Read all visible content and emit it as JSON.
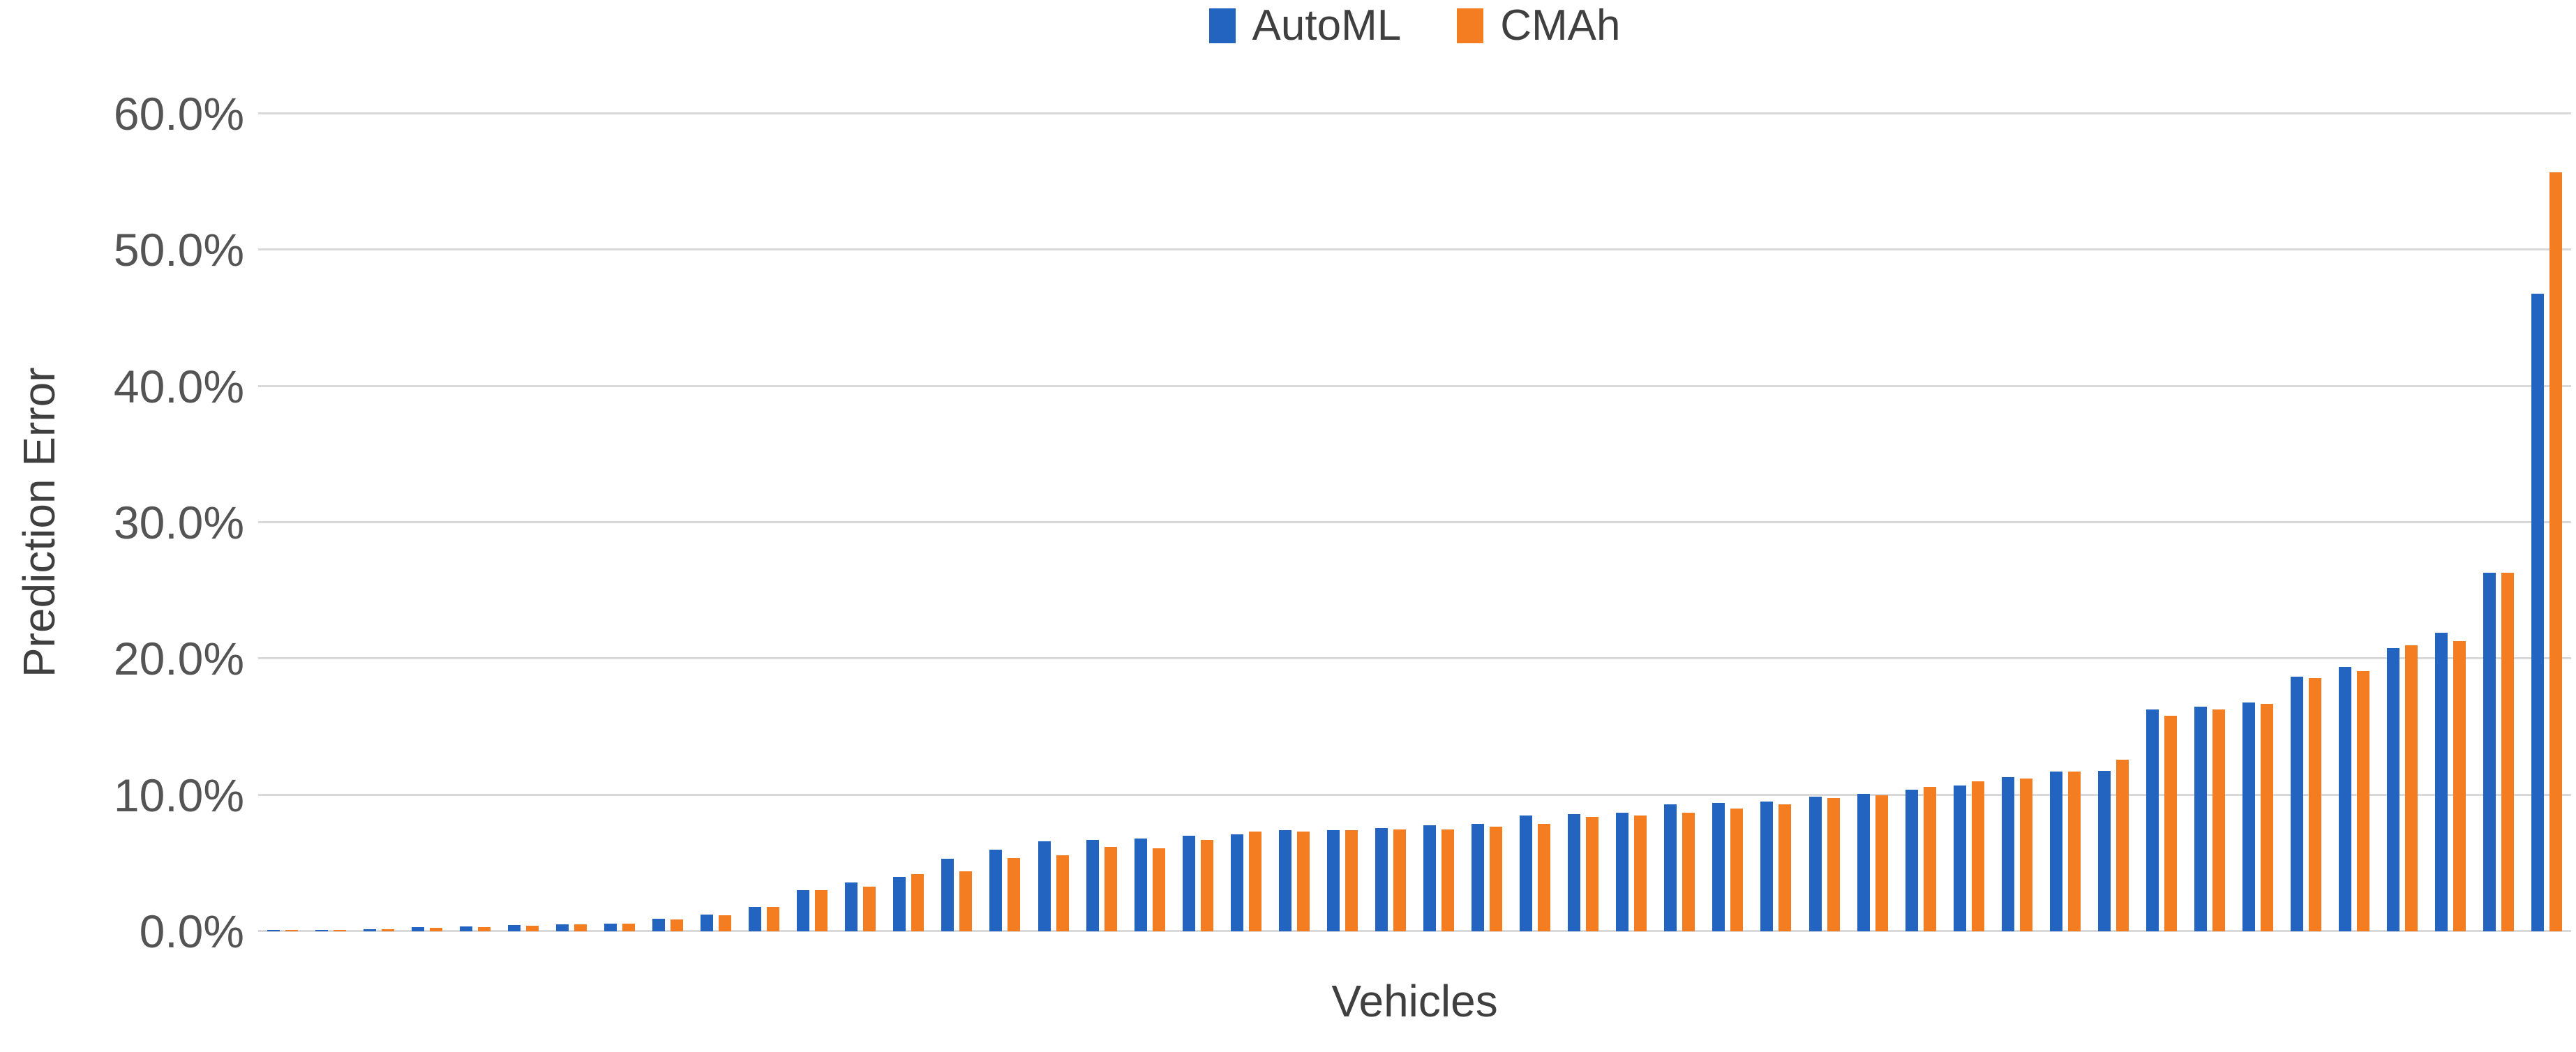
{
  "colors": {
    "background": "#FFFFFF",
    "gridline": "#D9D9D9",
    "tick_text": "#545454",
    "axis_title_text": "#3F3F3F",
    "legend_text": "#3F3F3F"
  },
  "chart_data": {
    "type": "bar",
    "title": "",
    "xlabel": "Vehicles",
    "ylabel": "Prediction Error",
    "ylim": [
      0,
      60
    ],
    "y_unit": "percent",
    "grid": true,
    "legend_position": "top-center",
    "n_groups": 48,
    "yticks": [
      {
        "value": 0,
        "label": "0.0%"
      },
      {
        "value": 10,
        "label": "10.0%"
      },
      {
        "value": 20,
        "label": "20.0%"
      },
      {
        "value": 30,
        "label": "30.0%"
      },
      {
        "value": 40,
        "label": "40.0%"
      },
      {
        "value": 50,
        "label": "50.0%"
      },
      {
        "value": 60,
        "label": "60.0%"
      }
    ],
    "series": [
      {
        "name": "AutoML",
        "color": "#2264C0",
        "values": [
          0.1,
          0.1,
          0.15,
          0.3,
          0.35,
          0.45,
          0.5,
          0.55,
          0.9,
          1.25,
          1.8,
          3.0,
          3.6,
          4.0,
          5.3,
          6.0,
          6.6,
          6.7,
          6.8,
          7.0,
          7.1,
          7.4,
          7.4,
          7.6,
          7.8,
          7.9,
          8.5,
          8.6,
          8.7,
          9.3,
          9.4,
          9.5,
          9.9,
          10.1,
          10.4,
          10.7,
          11.3,
          11.7,
          11.8,
          16.3,
          16.5,
          16.8,
          18.7,
          19.4,
          20.8,
          21.9,
          26.3,
          46.8
        ]
      },
      {
        "name": "CMAh",
        "color": "#F57D21",
        "values": [
          0.1,
          0.1,
          0.15,
          0.25,
          0.3,
          0.4,
          0.5,
          0.55,
          0.85,
          1.2,
          1.8,
          3.0,
          3.3,
          4.2,
          4.4,
          5.4,
          5.6,
          6.2,
          6.1,
          6.7,
          7.3,
          7.3,
          7.4,
          7.5,
          7.5,
          7.7,
          7.9,
          8.4,
          8.5,
          8.7,
          9.0,
          9.3,
          9.8,
          10.0,
          10.6,
          11.0,
          11.2,
          11.7,
          12.6,
          15.8,
          16.3,
          16.7,
          18.6,
          19.1,
          21.0,
          21.3,
          26.3,
          55.7
        ]
      }
    ]
  }
}
